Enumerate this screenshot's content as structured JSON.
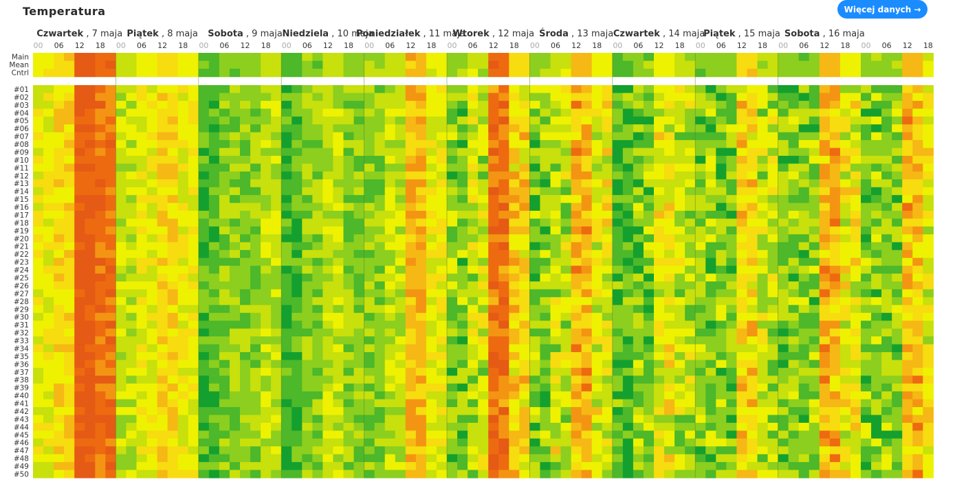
{
  "header": {
    "title": "Temperatura",
    "more_button": "Więcej danych",
    "arrow_icon": "arrow-right-icon"
  },
  "chart_data": {
    "type": "heatmap",
    "title": "Temperatura",
    "days": [
      {
        "name": "Czwartek",
        "date": "7 maja"
      },
      {
        "name": "Piątek",
        "date": "8 maja"
      },
      {
        "name": "Sobota",
        "date": "9 maja"
      },
      {
        "name": "Niedziela",
        "date": "10 maja"
      },
      {
        "name": "Poniedziałek",
        "date": "11 maja"
      },
      {
        "name": "Wtorek",
        "date": "12 maja"
      },
      {
        "name": "Środa",
        "date": "13 maja"
      },
      {
        "name": "Czwartek",
        "date": "14 maja"
      },
      {
        "name": "Piątek",
        "date": "15 maja"
      },
      {
        "name": "Sobota",
        "date": "16 maja"
      }
    ],
    "hour_ticks": [
      "00",
      "06",
      "12",
      "18"
    ],
    "summary_rows": [
      "Main",
      "Mean",
      "Cntrl"
    ],
    "member_rows": [
      "#01",
      "#02",
      "#03",
      "#04",
      "#05",
      "#06",
      "#07",
      "#08",
      "#09",
      "#10",
      "#11",
      "#12",
      "#13",
      "#14",
      "#15",
      "#16",
      "#17",
      "#18",
      "#19",
      "#20",
      "#21",
      "#22",
      "#23",
      "#24",
      "#25",
      "#26",
      "#27",
      "#28",
      "#29",
      "#30",
      "#31",
      "#32",
      "#33",
      "#34",
      "#35",
      "#36",
      "#37",
      "#38",
      "#39",
      "#40",
      "#41",
      "#42",
      "#43",
      "#44",
      "#45",
      "#46",
      "#47",
      "#48",
      "#49",
      "#50"
    ],
    "color_scale": [
      "#14a02e",
      "#4cb82a",
      "#8ccf1e",
      "#c8e00c",
      "#eef200",
      "#f7dc10",
      "#f6b815",
      "#f39512",
      "#ee6a10",
      "#e55a14"
    ],
    "day_profile": [
      [
        4,
        5,
        9,
        8
      ],
      [
        3,
        4,
        5,
        4
      ],
      [
        1,
        2,
        2,
        3
      ],
      [
        1,
        2,
        3,
        2
      ],
      [
        2,
        3,
        6,
        4
      ],
      [
        2,
        3,
        8,
        5
      ],
      [
        2,
        3,
        6,
        4
      ],
      [
        1,
        2,
        4,
        3
      ],
      [
        2,
        2,
        5,
        3
      ],
      [
        2,
        2,
        6,
        4
      ]
    ],
    "grid": false,
    "legend": "none"
  }
}
